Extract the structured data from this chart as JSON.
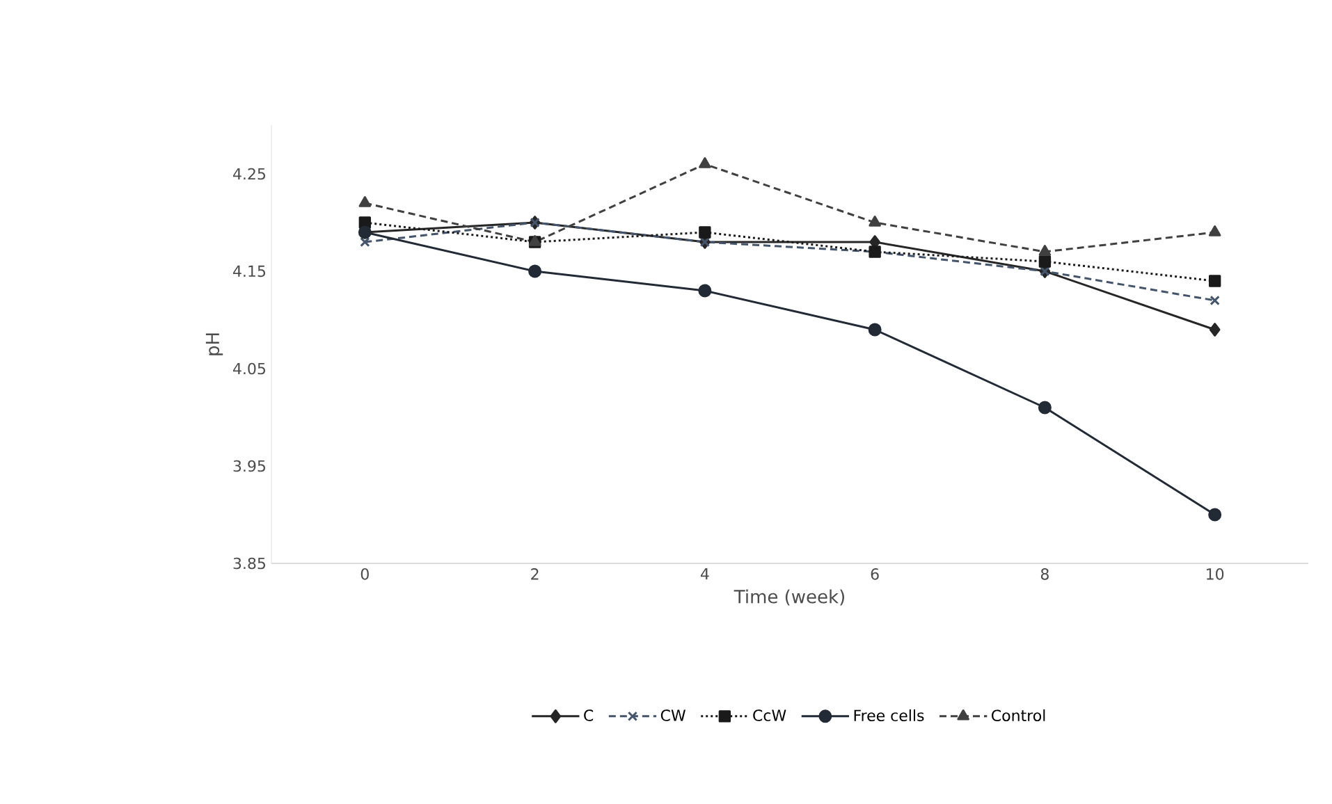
{
  "chart_data": {
    "type": "line",
    "xlabel": "Time (week)",
    "ylabel": "pH",
    "categories": [
      "0",
      "2",
      "4",
      "6",
      "8",
      "10"
    ],
    "ylim": [
      3.85,
      4.3
    ],
    "yticks": [
      3.85,
      3.95,
      4.05,
      4.15,
      4.25
    ],
    "grid": false,
    "legend": "bottom",
    "series": [
      {
        "name": "C",
        "color": "#262626",
        "marker": "diamond",
        "line_style": "solid",
        "values": [
          4.19,
          4.2,
          4.18,
          4.18,
          4.15,
          4.09
        ]
      },
      {
        "name": "CW",
        "color": "#44546a",
        "marker": "cross",
        "line_style": "dashed",
        "values": [
          4.18,
          4.2,
          4.18,
          4.17,
          4.15,
          4.12
        ]
      },
      {
        "name": "CcW",
        "color": "#1a1a1a",
        "marker": "square",
        "line_style": "dotted",
        "values": [
          4.2,
          4.18,
          4.19,
          4.17,
          4.16,
          4.14
        ]
      },
      {
        "name": "Free cells",
        "color": "#222a35",
        "marker": "circle",
        "line_style": "solid",
        "values": [
          4.19,
          4.15,
          4.13,
          4.09,
          4.01,
          3.9
        ]
      },
      {
        "name": "Control",
        "color": "#404040",
        "marker": "triangle",
        "line_style": "dashed",
        "values": [
          4.22,
          4.18,
          4.26,
          4.2,
          4.17,
          4.19
        ]
      }
    ]
  }
}
